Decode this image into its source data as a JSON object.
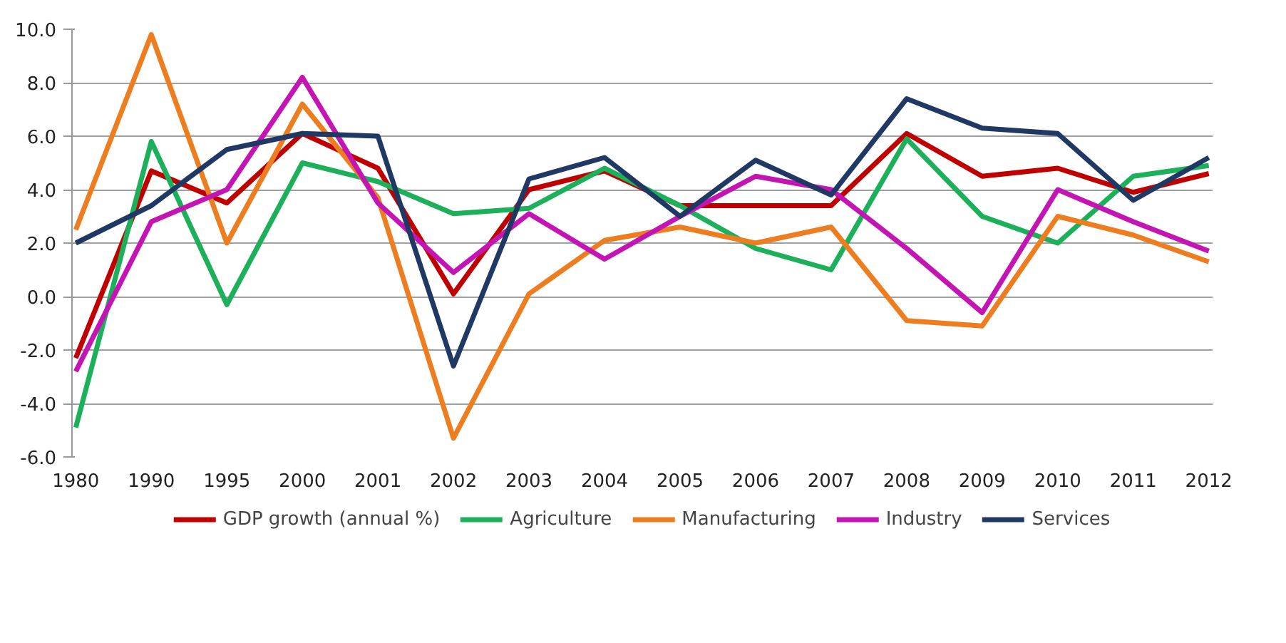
{
  "chart_data": {
    "type": "line",
    "categories": [
      "1980",
      "1990",
      "1995",
      "2000",
      "2001",
      "2002",
      "2003",
      "2004",
      "2005",
      "2006",
      "2007",
      "2008",
      "2009",
      "2010",
      "2011",
      "2012"
    ],
    "series": [
      {
        "name": "GDP growth (annual %)",
        "color": "#c00000",
        "values": [
          -2.3,
          4.7,
          3.5,
          6.1,
          4.8,
          0.1,
          4.0,
          4.7,
          3.4,
          3.4,
          3.4,
          6.1,
          4.5,
          4.8,
          3.9,
          4.6
        ]
      },
      {
        "name": "Agriculture",
        "color": "#1db05a",
        "values": [
          -4.9,
          5.8,
          -0.3,
          5.0,
          4.3,
          3.1,
          3.3,
          4.8,
          3.4,
          1.8,
          1.0,
          5.9,
          3.0,
          2.0,
          4.5,
          4.9
        ]
      },
      {
        "name": "Manufacturing",
        "color": "#ed7d1f",
        "values": [
          2.5,
          9.8,
          2.0,
          7.2,
          3.7,
          -5.3,
          0.1,
          2.1,
          2.6,
          2.0,
          2.6,
          -0.9,
          -1.1,
          3.0,
          2.3,
          1.3
        ]
      },
      {
        "name": "Industry",
        "color": "#c414b4",
        "values": [
          -2.8,
          2.8,
          4.0,
          8.2,
          3.5,
          0.9,
          3.1,
          1.4,
          3.0,
          4.5,
          4.0,
          1.8,
          -0.6,
          4.0,
          2.8,
          1.7
        ]
      },
      {
        "name": "Services",
        "color": "#1f3864",
        "values": [
          2.0,
          3.4,
          5.5,
          6.1,
          6.0,
          -2.6,
          4.4,
          5.2,
          3.0,
          5.1,
          3.8,
          7.4,
          6.3,
          6.1,
          3.6,
          5.2
        ]
      }
    ],
    "ylim": [
      -6.0,
      10.0
    ],
    "yticks": [
      {
        "value": -6,
        "label": "-6.0"
      },
      {
        "value": -4,
        "label": "-4.0"
      },
      {
        "value": -2,
        "label": "-2.0"
      },
      {
        "value": 0,
        "label": "0.0"
      },
      {
        "value": 2,
        "label": "2.0"
      },
      {
        "value": 4,
        "label": "4.0"
      },
      {
        "value": 6,
        "label": "6.0"
      },
      {
        "value": 8,
        "label": "8.0"
      },
      {
        "value": 10,
        "label": "10.0"
      }
    ],
    "grid": "y",
    "legend": "bottom",
    "marker": "none",
    "line_style": "solid"
  }
}
